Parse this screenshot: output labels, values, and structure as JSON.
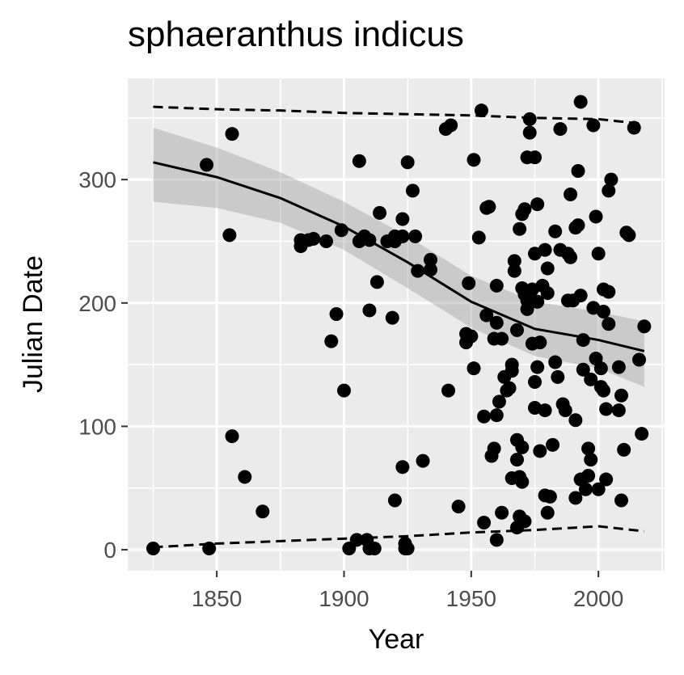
{
  "title": "sphaeranthus indicus",
  "chart_data": {
    "type": "scatter",
    "title": "sphaeranthus indicus",
    "xlabel": "Year",
    "ylabel": "Julian Date",
    "xlim": [
      1815,
      2026
    ],
    "ylim": [
      -17,
      382
    ],
    "x_ticks": [
      1850,
      1900,
      1950,
      2000
    ],
    "y_ticks": [
      0,
      100,
      200,
      300
    ],
    "grid": true,
    "background": "#ebebeb",
    "points": [
      [
        1825,
        1
      ],
      [
        1846,
        312
      ],
      [
        1847,
        1
      ],
      [
        1855,
        255
      ],
      [
        1856,
        337
      ],
      [
        1856,
        92
      ],
      [
        1861,
        59
      ],
      [
        1868,
        31
      ],
      [
        1883,
        246
      ],
      [
        1883,
        251
      ],
      [
        1886,
        251
      ],
      [
        1888,
        252
      ],
      [
        1893,
        250
      ],
      [
        1895,
        169
      ],
      [
        1897,
        191
      ],
      [
        1899,
        259
      ],
      [
        1900,
        129
      ],
      [
        1902,
        1
      ],
      [
        1905,
        8
      ],
      [
        1906,
        315
      ],
      [
        1906,
        250
      ],
      [
        1908,
        254
      ],
      [
        1909,
        8
      ],
      [
        1910,
        194
      ],
      [
        1910,
        1
      ],
      [
        1910,
        251
      ],
      [
        1912,
        1
      ],
      [
        1913,
        217
      ],
      [
        1914,
        273
      ],
      [
        1917,
        250
      ],
      [
        1919,
        188
      ],
      [
        1920,
        250
      ],
      [
        1920,
        40
      ],
      [
        1920,
        254
      ],
      [
        1923,
        268
      ],
      [
        1923,
        67
      ],
      [
        1923,
        254
      ],
      [
        1924,
        1
      ],
      [
        1924,
        5
      ],
      [
        1925,
        314
      ],
      [
        1925,
        1
      ],
      [
        1927,
        291
      ],
      [
        1928,
        254
      ],
      [
        1929,
        226
      ],
      [
        1931,
        72
      ],
      [
        1934,
        227
      ],
      [
        1934,
        235
      ],
      [
        1945,
        35
      ],
      [
        1940,
        341
      ],
      [
        1942,
        344
      ],
      [
        1941,
        129
      ],
      [
        1948,
        175
      ],
      [
        1948,
        168
      ],
      [
        1949,
        216
      ],
      [
        1950,
        173
      ],
      [
        1951,
        147
      ],
      [
        1951,
        316
      ],
      [
        1953,
        253
      ],
      [
        1954,
        356
      ],
      [
        1955,
        22
      ],
      [
        1956,
        190
      ],
      [
        1955,
        108
      ],
      [
        1956,
        277
      ],
      [
        1957,
        278
      ],
      [
        1958,
        76
      ],
      [
        1959,
        82
      ],
      [
        1959,
        171
      ],
      [
        1960,
        8
      ],
      [
        1960,
        184
      ],
      [
        1960,
        109
      ],
      [
        1961,
        120
      ],
      [
        1960,
        214
      ],
      [
        1962,
        30
      ],
      [
        1962,
        171
      ],
      [
        1963,
        140
      ],
      [
        1964,
        129
      ],
      [
        1965,
        131
      ],
      [
        1966,
        58
      ],
      [
        1966,
        145
      ],
      [
        1966,
        150
      ],
      [
        1967,
        234
      ],
      [
        1967,
        226
      ],
      [
        1968,
        89
      ],
      [
        1968,
        18
      ],
      [
        1968,
        73
      ],
      [
        1968,
        178
      ],
      [
        1969,
        59
      ],
      [
        1969,
        260
      ],
      [
        1969,
        27
      ],
      [
        1970,
        83
      ],
      [
        1970,
        272
      ],
      [
        1970,
        55
      ],
      [
        1970,
        212
      ],
      [
        1971,
        276
      ],
      [
        1971,
        207
      ],
      [
        1971,
        23
      ],
      [
        1972,
        318
      ],
      [
        1972,
        202
      ],
      [
        1972,
        195
      ],
      [
        1973,
        349
      ],
      [
        1973,
        338
      ],
      [
        1974,
        167
      ],
      [
        1974,
        211
      ],
      [
        1975,
        240
      ],
      [
        1975,
        318
      ],
      [
        1975,
        115
      ],
      [
        1975,
        136
      ],
      [
        1976,
        280
      ],
      [
        1976,
        201
      ],
      [
        1976,
        148
      ],
      [
        1976,
        201
      ],
      [
        1977,
        80
      ],
      [
        1977,
        168
      ],
      [
        1978,
        214
      ],
      [
        1979,
        243
      ],
      [
        1979,
        113
      ],
      [
        1979,
        44
      ],
      [
        1980,
        208
      ],
      [
        1980,
        228
      ],
      [
        1980,
        30
      ],
      [
        1981,
        43
      ],
      [
        1982,
        85
      ],
      [
        1983,
        258
      ],
      [
        1983,
        152
      ],
      [
        1984,
        140
      ],
      [
        1985,
        243
      ],
      [
        1985,
        341
      ],
      [
        1986,
        118
      ],
      [
        1987,
        113
      ],
      [
        1988,
        240
      ],
      [
        1988,
        202
      ],
      [
        1989,
        237
      ],
      [
        1989,
        288
      ],
      [
        1990,
        202
      ],
      [
        1991,
        42
      ],
      [
        1991,
        105
      ],
      [
        1991,
        261
      ],
      [
        1992,
        263
      ],
      [
        1992,
        307
      ],
      [
        1993,
        363
      ],
      [
        1993,
        57
      ],
      [
        1993,
        206
      ],
      [
        1994,
        170
      ],
      [
        1994,
        146
      ],
      [
        1995,
        49
      ],
      [
        1996,
        60
      ],
      [
        1996,
        82
      ],
      [
        1997,
        73
      ],
      [
        1997,
        138
      ],
      [
        1998,
        344
      ],
      [
        1998,
        196
      ],
      [
        1999,
        155
      ],
      [
        1999,
        270
      ],
      [
        2000,
        49
      ],
      [
        2000,
        240
      ],
      [
        2001,
        147
      ],
      [
        2001,
        132
      ],
      [
        2002,
        193
      ],
      [
        2002,
        211
      ],
      [
        2002,
        129
      ],
      [
        2003,
        114
      ],
      [
        2003,
        57
      ],
      [
        2004,
        291
      ],
      [
        2004,
        183
      ],
      [
        2004,
        209
      ],
      [
        2005,
        300
      ],
      [
        2008,
        113
      ],
      [
        2008,
        148
      ],
      [
        2009,
        125
      ],
      [
        2009,
        40
      ],
      [
        2010,
        81
      ],
      [
        2011,
        257
      ],
      [
        2012,
        255
      ],
      [
        2014,
        342
      ],
      [
        2016,
        154
      ],
      [
        2017,
        94
      ],
      [
        2018,
        181
      ]
    ],
    "fit_line": [
      [
        1825,
        314
      ],
      [
        1850,
        302
      ],
      [
        1875,
        285
      ],
      [
        1900,
        262
      ],
      [
        1925,
        233
      ],
      [
        1950,
        201
      ],
      [
        1975,
        179
      ],
      [
        2000,
        170
      ],
      [
        2018,
        161
      ]
    ],
    "fit_ribbon_upper": [
      [
        1825,
        342
      ],
      [
        1850,
        326
      ],
      [
        1875,
        306
      ],
      [
        1900,
        282
      ],
      [
        1925,
        254
      ],
      [
        1950,
        222
      ],
      [
        1975,
        201
      ],
      [
        2000,
        193
      ],
      [
        2018,
        185
      ]
    ],
    "fit_ribbon_lower": [
      [
        1825,
        282
      ],
      [
        1850,
        277
      ],
      [
        1875,
        265
      ],
      [
        1900,
        243
      ],
      [
        1925,
        212
      ],
      [
        1950,
        180
      ],
      [
        1975,
        157
      ],
      [
        2000,
        147
      ],
      [
        2018,
        132
      ]
    ],
    "upper_bound_dashed": [
      [
        1825,
        359
      ],
      [
        1850,
        357
      ],
      [
        1875,
        356
      ],
      [
        1900,
        354
      ],
      [
        1925,
        353
      ],
      [
        1950,
        352
      ],
      [
        1975,
        350
      ],
      [
        2000,
        349
      ],
      [
        2018,
        345
      ]
    ],
    "lower_bound_dashed": [
      [
        1825,
        2
      ],
      [
        1850,
        5
      ],
      [
        1875,
        7
      ],
      [
        1900,
        9
      ],
      [
        1925,
        11
      ],
      [
        1950,
        14
      ],
      [
        1975,
        16
      ],
      [
        2000,
        19
      ],
      [
        2018,
        15
      ]
    ]
  }
}
